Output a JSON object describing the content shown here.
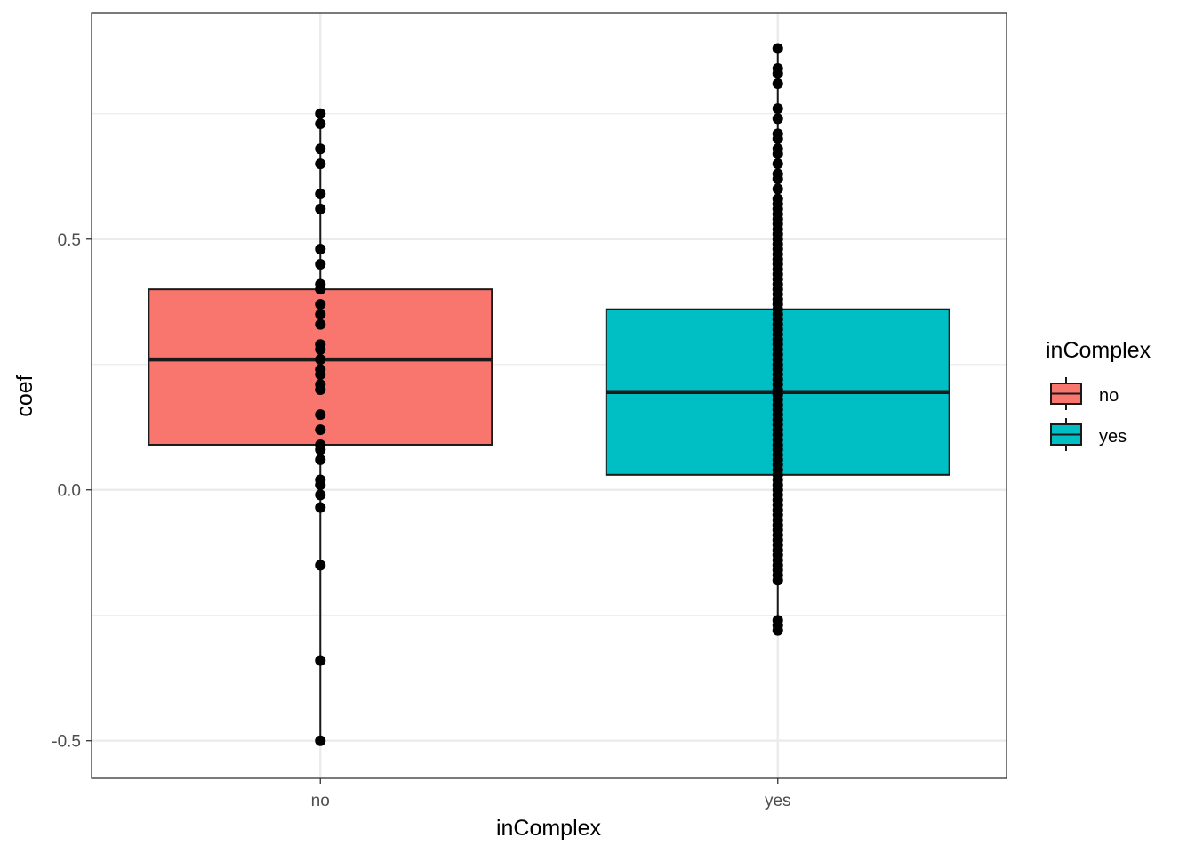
{
  "chart_data": {
    "type": "box",
    "xlabel": "inComplex",
    "ylabel": "coef",
    "categories": [
      "no",
      "yes"
    ],
    "ylim": [
      -0.575,
      0.95
    ],
    "y_ticks": [
      -0.5,
      0.0,
      0.5
    ],
    "y_tick_labels": [
      "-0.5",
      "0.0",
      "0.5"
    ],
    "grid": true,
    "legend": {
      "title": "inComplex",
      "position": "right",
      "entries": [
        {
          "label": "no",
          "color": "#F8766D"
        },
        {
          "label": "yes",
          "color": "#00BFC4"
        }
      ]
    },
    "series": [
      {
        "category": "no",
        "fill": "#F8766D",
        "box": {
          "min": -0.5,
          "q1": 0.09,
          "median": 0.26,
          "q3": 0.4,
          "max": 0.75
        },
        "points": [
          0.75,
          0.73,
          0.68,
          0.65,
          0.59,
          0.56,
          0.48,
          0.45,
          0.41,
          0.4,
          0.37,
          0.35,
          0.33,
          0.29,
          0.28,
          0.26,
          0.24,
          0.23,
          0.21,
          0.2,
          0.15,
          0.12,
          0.09,
          0.08,
          0.06,
          0.02,
          0.01,
          -0.01,
          -0.035,
          -0.15,
          -0.34,
          -0.5
        ]
      },
      {
        "category": "yes",
        "fill": "#00BFC4",
        "box": {
          "min": -0.28,
          "q1": 0.03,
          "median": 0.195,
          "q3": 0.36,
          "max": 0.88
        },
        "points": [
          0.88,
          0.84,
          0.83,
          0.81,
          0.76,
          0.74,
          0.71,
          0.7,
          0.68,
          0.67,
          0.65,
          0.63,
          0.62,
          0.6,
          0.58,
          0.57,
          0.56,
          0.55,
          0.54,
          0.53,
          0.52,
          0.51,
          0.5,
          0.49,
          0.48,
          0.47,
          0.46,
          0.45,
          0.44,
          0.43,
          0.42,
          0.41,
          0.4,
          0.39,
          0.38,
          0.37,
          0.36,
          0.35,
          0.34,
          0.33,
          0.32,
          0.31,
          0.3,
          0.29,
          0.28,
          0.27,
          0.26,
          0.25,
          0.24,
          0.23,
          0.22,
          0.21,
          0.2,
          0.19,
          0.18,
          0.17,
          0.16,
          0.15,
          0.14,
          0.13,
          0.12,
          0.11,
          0.1,
          0.09,
          0.08,
          0.07,
          0.06,
          0.05,
          0.04,
          0.03,
          0.02,
          0.01,
          0.0,
          -0.01,
          -0.02,
          -0.03,
          -0.04,
          -0.05,
          -0.06,
          -0.07,
          -0.08,
          -0.09,
          -0.1,
          -0.11,
          -0.12,
          -0.13,
          -0.14,
          -0.15,
          -0.16,
          -0.17,
          -0.18,
          -0.26,
          -0.27,
          -0.28
        ]
      }
    ]
  }
}
